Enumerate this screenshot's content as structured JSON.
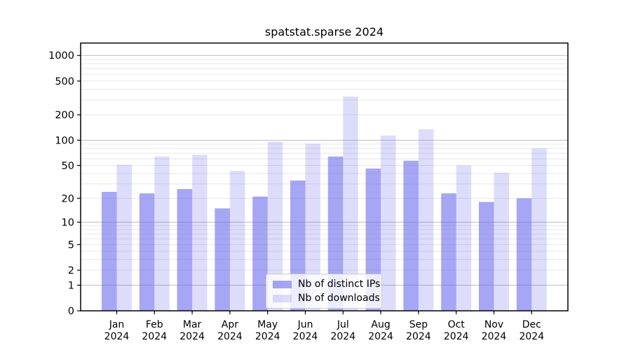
{
  "chart_data": {
    "type": "bar",
    "title": "spatstat.sparse 2024",
    "categories": [
      "Jan 2024",
      "Feb 2024",
      "Mar 2024",
      "Apr 2024",
      "May 2024",
      "Jun 2024",
      "Jul 2024",
      "Aug 2024",
      "Sep 2024",
      "Oct 2024",
      "Nov 2024",
      "Dec 2024"
    ],
    "months": [
      "Jan",
      "Feb",
      "Mar",
      "Apr",
      "May",
      "Jun",
      "Jul",
      "Aug",
      "Sep",
      "Oct",
      "Nov",
      "Dec"
    ],
    "year_label": "2024",
    "series": [
      {
        "name": "Nb of distinct IPs",
        "color": "rgba(102,102,238,0.58)",
        "values": [
          24,
          23,
          26,
          15,
          21,
          33,
          64,
          46,
          57,
          23,
          18,
          20
        ]
      },
      {
        "name": "Nb of downloads",
        "color": "rgba(102,102,238,0.22)",
        "values": [
          51,
          64,
          67,
          43,
          96,
          91,
          328,
          114,
          135,
          50,
          41,
          80
        ]
      }
    ],
    "yscale": "log1p",
    "ylim": [
      0,
      1400
    ],
    "yticks": [
      0,
      1,
      2,
      5,
      10,
      20,
      50,
      100,
      200,
      500,
      1000
    ],
    "grid": {
      "on": true,
      "major_lines": [
        1,
        10,
        100,
        1000
      ],
      "minor_lines": [
        2,
        3,
        4,
        5,
        6,
        7,
        8,
        9,
        20,
        30,
        40,
        50,
        60,
        70,
        80,
        90,
        200,
        300,
        400,
        500,
        600,
        700,
        800,
        900
      ]
    },
    "legend": {
      "position": "inside-lower-center",
      "labels": [
        "Nb of distinct IPs",
        "Nb of downloads"
      ]
    },
    "colors": {
      "grid_major": "#bdbdbd",
      "grid_minor": "#e7e7e7",
      "spine": "#000000",
      "text": "#000000",
      "legend_border": "#cccccc",
      "legend_bg": "rgba(255,255,255,0.8)"
    }
  }
}
